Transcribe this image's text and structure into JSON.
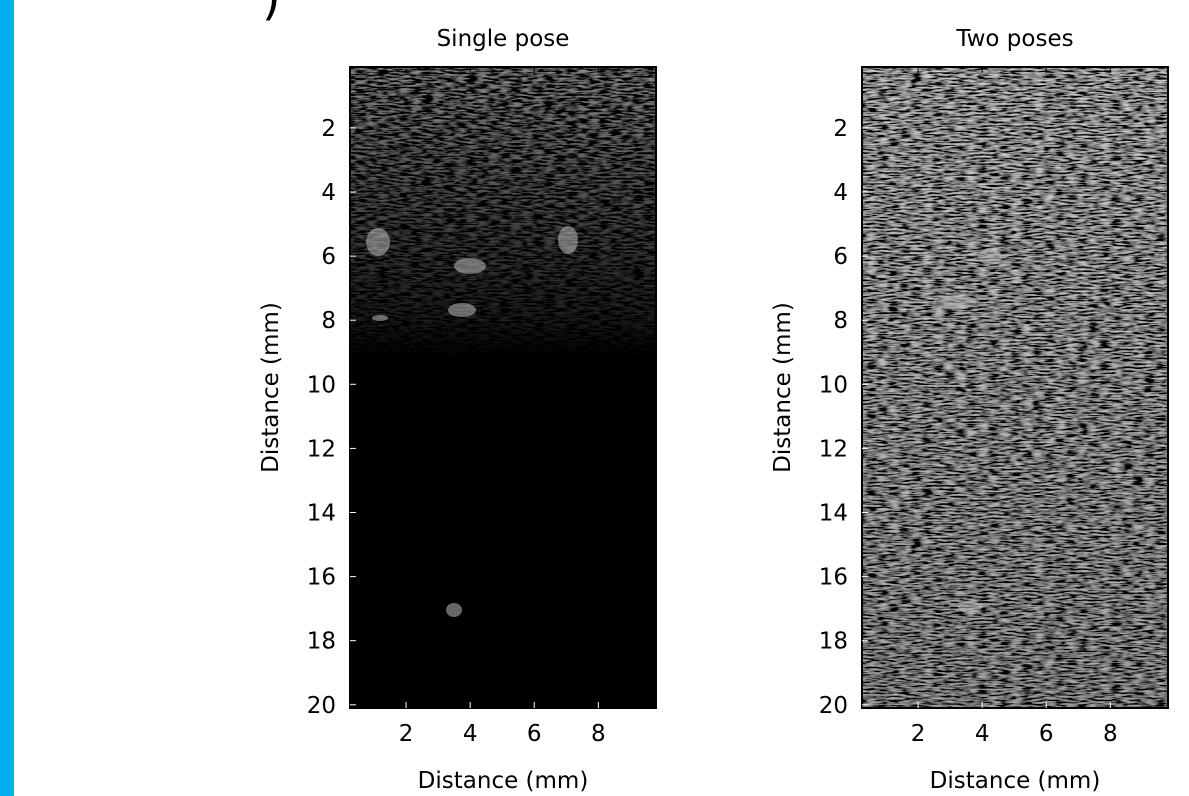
{
  "heading_fragment": ")",
  "chart_data": [
    {
      "type": "image",
      "title": "Single pose",
      "xlabel": "Distance (mm)",
      "ylabel": "Distance (mm)",
      "xlim": [
        0.25,
        9.8
      ],
      "ylim": [
        0.1,
        20.1
      ],
      "y_inverted": true,
      "xticks": [
        2,
        4,
        6,
        8
      ],
      "yticks": [
        2,
        4,
        6,
        8,
        10,
        12,
        14,
        16,
        18,
        20
      ]
    },
    {
      "type": "image",
      "title": "Two poses",
      "xlabel": "Distance (mm)",
      "ylabel": "Distance (mm)",
      "xlim": [
        0.25,
        9.8
      ],
      "ylim": [
        0.1,
        20.1
      ],
      "y_inverted": true,
      "xticks": [
        2,
        4,
        6,
        8
      ],
      "yticks": [
        2,
        4,
        6,
        8,
        10,
        12,
        14,
        16,
        18,
        20
      ]
    }
  ]
}
